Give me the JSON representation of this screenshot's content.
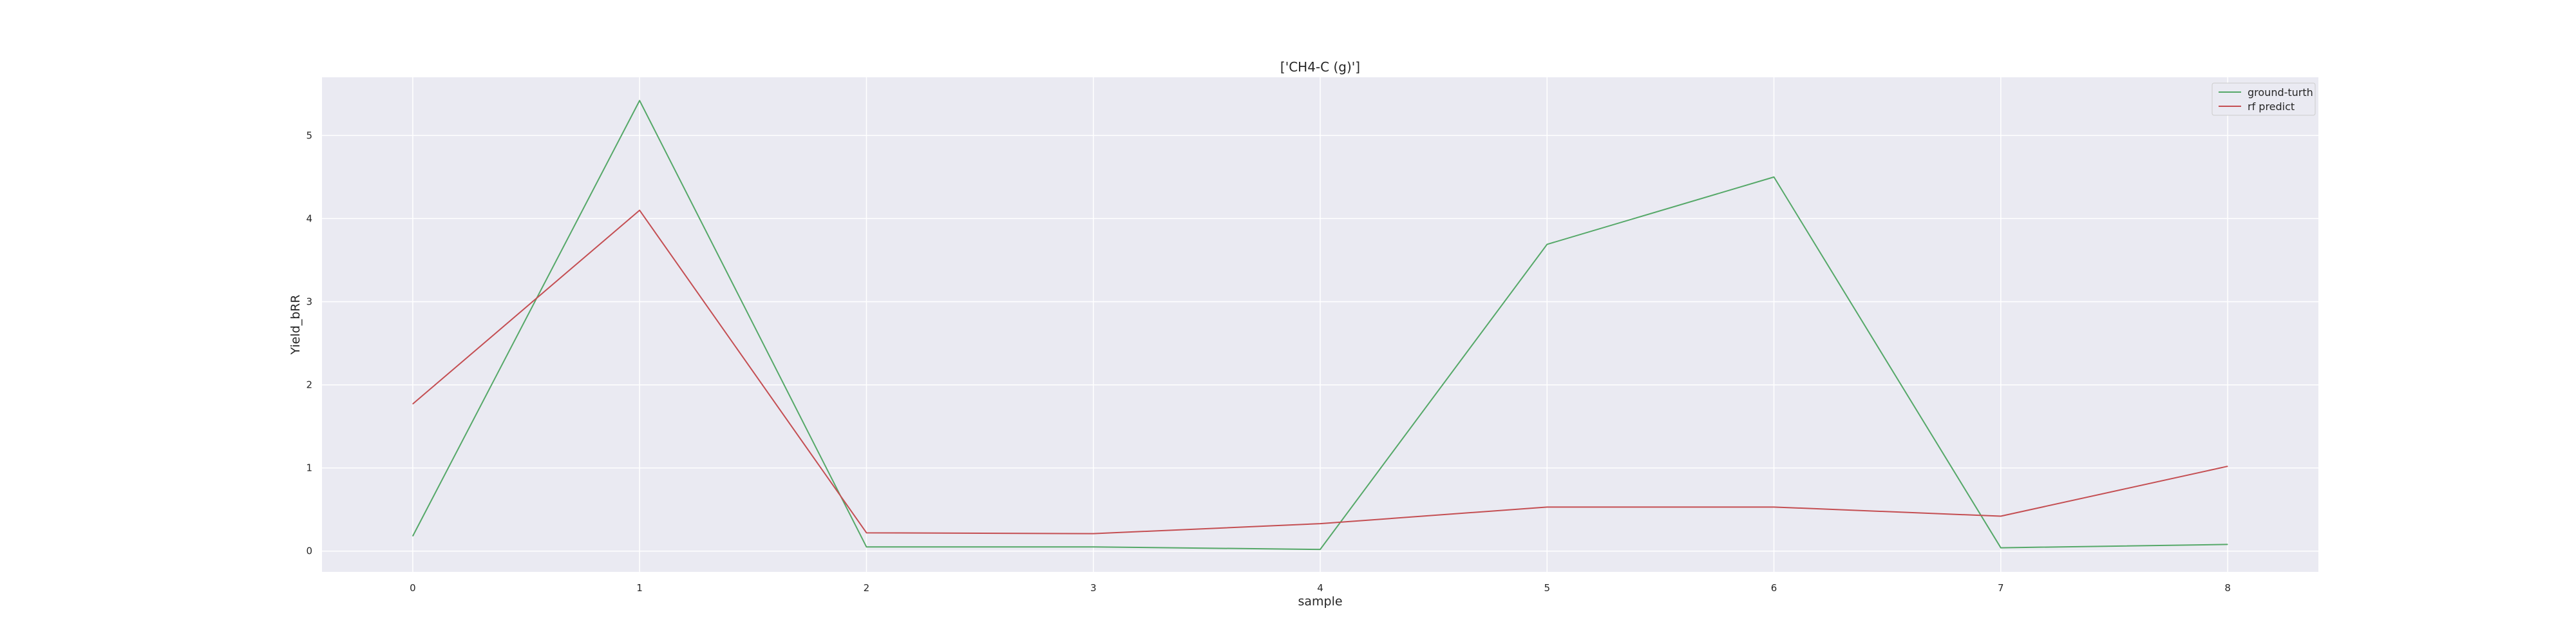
{
  "chart_data": {
    "type": "line",
    "title": "['CH4-C (g)']",
    "xlabel": "sample",
    "ylabel": "Yield_bRR",
    "x": [
      0,
      1,
      2,
      3,
      4,
      5,
      6,
      7,
      8
    ],
    "xlim": [
      -0.4,
      8.4
    ],
    "ylim": [
      -0.25,
      5.7
    ],
    "xticks": [
      0,
      1,
      2,
      3,
      4,
      5,
      6,
      7,
      8
    ],
    "yticks": [
      0,
      1,
      2,
      3,
      4,
      5
    ],
    "grid": true,
    "legend_position": "top-right",
    "background_color": "#eaeaf2",
    "series": [
      {
        "name": "ground-turth",
        "color": "#55a868",
        "values": [
          0.18,
          5.42,
          0.05,
          0.05,
          0.02,
          3.69,
          4.5,
          0.04,
          0.08
        ]
      },
      {
        "name": "rf predict",
        "color": "#c44e52",
        "values": [
          1.77,
          4.1,
          0.22,
          0.21,
          0.33,
          0.53,
          0.53,
          0.42,
          1.02
        ]
      }
    ]
  }
}
